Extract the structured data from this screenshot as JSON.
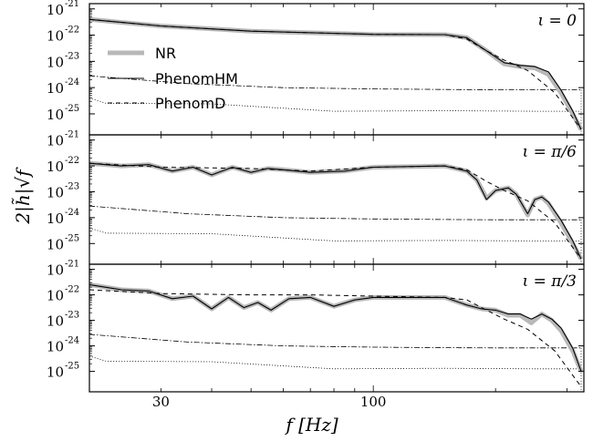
{
  "chart_data": {
    "type": "line",
    "x_axis": {
      "label": "f [Hz]",
      "scale": "log",
      "range_hz": [
        20,
        330
      ],
      "ticks": [
        {
          "value": 30,
          "label": "30"
        },
        {
          "value": 100,
          "label": "100"
        }
      ]
    },
    "y_axis": {
      "label": "2|h̃|√f",
      "scale": "log",
      "range_log10": [
        -25.8,
        -20.8
      ],
      "tick_mantissa": "10",
      "ticks": [
        {
          "value": -21,
          "exponent": "-21"
        },
        {
          "value": -22,
          "exponent": "-22"
        },
        {
          "value": -23,
          "exponent": "-23"
        },
        {
          "value": -24,
          "exponent": "-24"
        },
        {
          "value": -25,
          "exponent": "-25"
        }
      ]
    },
    "legend": {
      "placement": "upper-left of top panel",
      "entries": [
        {
          "name": "NR",
          "style": "thick-grey-solid"
        },
        {
          "name": "PhenomHM",
          "style": "thin-black-solid"
        },
        {
          "name": "PhenomD",
          "style": "black-dashed"
        }
      ]
    },
    "noise_curves": {
      "dashdot_log10": [
        [
          20,
          -23.55
        ],
        [
          35,
          -23.85
        ],
        [
          60,
          -24.0
        ],
        [
          100,
          -24.05
        ],
        [
          150,
          -24.07
        ],
        [
          200,
          -24.08
        ],
        [
          325,
          -24.08
        ]
      ],
      "dotted_log10": [
        [
          20,
          -24.4
        ],
        [
          22,
          -24.6
        ],
        [
          40,
          -24.62
        ],
        [
          80,
          -24.9
        ],
        [
          150,
          -24.88
        ],
        [
          250,
          -24.9
        ],
        [
          325,
          -24.9
        ]
      ]
    },
    "panels": [
      {
        "label": "ι = 0",
        "series": [
          {
            "name": "NR",
            "color": "#b8b8b8",
            "points": [
              [
                20,
                -21.4
              ],
              [
                30,
                -21.65
              ],
              [
                50,
                -21.85
              ],
              [
                100,
                -21.97
              ],
              [
                150,
                -21.98
              ],
              [
                170,
                -22.1
              ],
              [
                190,
                -22.6
              ],
              [
                210,
                -23.1
              ],
              [
                230,
                -23.2
              ],
              [
                250,
                -23.25
              ],
              [
                270,
                -23.5
              ],
              [
                290,
                -24.2
              ],
              [
                310,
                -25.0
              ],
              [
                325,
                -25.6
              ]
            ]
          },
          {
            "name": "PhenomHM",
            "color": "#000000",
            "points": [
              [
                20,
                -21.4
              ],
              [
                30,
                -21.65
              ],
              [
                50,
                -21.85
              ],
              [
                100,
                -21.97
              ],
              [
                150,
                -21.98
              ],
              [
                170,
                -22.1
              ],
              [
                190,
                -22.6
              ],
              [
                210,
                -23.05
              ],
              [
                230,
                -23.15
              ],
              [
                250,
                -23.2
              ],
              [
                270,
                -23.4
              ],
              [
                290,
                -24.1
              ],
              [
                310,
                -24.9
              ],
              [
                325,
                -25.6
              ]
            ]
          },
          {
            "name": "PhenomD",
            "color": "#000000",
            "points": [
              [
                20,
                -21.4
              ],
              [
                30,
                -21.65
              ],
              [
                50,
                -21.85
              ],
              [
                100,
                -21.97
              ],
              [
                150,
                -21.98
              ],
              [
                170,
                -22.15
              ],
              [
                190,
                -22.6
              ],
              [
                210,
                -22.95
              ],
              [
                240,
                -23.35
              ],
              [
                280,
                -24.2
              ],
              [
                325,
                -25.6
              ]
            ]
          }
        ]
      },
      {
        "label": "ι = π/6",
        "series": [
          {
            "name": "NR",
            "color": "#b8b8b8",
            "points": [
              [
                20,
                -21.9
              ],
              [
                24,
                -22.0
              ],
              [
                28,
                -21.95
              ],
              [
                32,
                -22.2
              ],
              [
                36,
                -22.05
              ],
              [
                40,
                -22.35
              ],
              [
                45,
                -22.05
              ],
              [
                50,
                -22.25
              ],
              [
                55,
                -22.1
              ],
              [
                60,
                -22.15
              ],
              [
                70,
                -22.25
              ],
              [
                85,
                -22.2
              ],
              [
                100,
                -22.05
              ],
              [
                150,
                -22.0
              ],
              [
                170,
                -22.2
              ],
              [
                180,
                -22.55
              ],
              [
                190,
                -23.25
              ],
              [
                200,
                -22.95
              ],
              [
                215,
                -22.85
              ],
              [
                225,
                -23.1
              ],
              [
                240,
                -23.9
              ],
              [
                250,
                -23.3
              ],
              [
                260,
                -23.2
              ],
              [
                270,
                -23.45
              ],
              [
                290,
                -24.2
              ],
              [
                310,
                -25.0
              ],
              [
                325,
                -25.6
              ]
            ]
          },
          {
            "name": "PhenomHM",
            "color": "#000000",
            "points": [
              [
                20,
                -21.9
              ],
              [
                24,
                -22.0
              ],
              [
                28,
                -21.95
              ],
              [
                32,
                -22.2
              ],
              [
                36,
                -22.05
              ],
              [
                40,
                -22.35
              ],
              [
                45,
                -22.05
              ],
              [
                50,
                -22.25
              ],
              [
                55,
                -22.1
              ],
              [
                60,
                -22.15
              ],
              [
                70,
                -22.25
              ],
              [
                85,
                -22.2
              ],
              [
                100,
                -22.05
              ],
              [
                150,
                -22.0
              ],
              [
                170,
                -22.2
              ],
              [
                180,
                -22.55
              ],
              [
                190,
                -23.3
              ],
              [
                200,
                -22.95
              ],
              [
                215,
                -22.85
              ],
              [
                225,
                -23.1
              ],
              [
                240,
                -23.85
              ],
              [
                250,
                -23.3
              ],
              [
                260,
                -23.2
              ],
              [
                270,
                -23.4
              ],
              [
                290,
                -24.1
              ],
              [
                310,
                -24.9
              ],
              [
                325,
                -25.6
              ]
            ]
          },
          {
            "name": "PhenomD",
            "color": "#000000",
            "points": [
              [
                20,
                -21.9
              ],
              [
                30,
                -22.05
              ],
              [
                50,
                -22.1
              ],
              [
                70,
                -22.2
              ],
              [
                100,
                -22.05
              ],
              [
                150,
                -22.0
              ],
              [
                170,
                -22.15
              ],
              [
                190,
                -22.6
              ],
              [
                210,
                -22.95
              ],
              [
                240,
                -23.35
              ],
              [
                280,
                -24.2
              ],
              [
                325,
                -25.6
              ]
            ]
          }
        ]
      },
      {
        "label": "ι = π/3",
        "series": [
          {
            "name": "NR",
            "color": "#b8b8b8",
            "points": [
              [
                20,
                -21.6
              ],
              [
                24,
                -21.8
              ],
              [
                28,
                -21.85
              ],
              [
                32,
                -22.15
              ],
              [
                36,
                -22.05
              ],
              [
                40,
                -22.55
              ],
              [
                44,
                -22.1
              ],
              [
                48,
                -22.5
              ],
              [
                52,
                -22.3
              ],
              [
                56,
                -22.6
              ],
              [
                62,
                -22.15
              ],
              [
                70,
                -22.1
              ],
              [
                80,
                -22.45
              ],
              [
                90,
                -22.2
              ],
              [
                100,
                -22.1
              ],
              [
                150,
                -22.1
              ],
              [
                170,
                -22.4
              ],
              [
                185,
                -22.55
              ],
              [
                200,
                -22.6
              ],
              [
                215,
                -22.8
              ],
              [
                230,
                -22.8
              ],
              [
                245,
                -23.1
              ],
              [
                260,
                -22.75
              ],
              [
                275,
                -23.0
              ],
              [
                290,
                -23.4
              ],
              [
                310,
                -24.2
              ],
              [
                325,
                -25.0
              ]
            ]
          },
          {
            "name": "PhenomHM",
            "color": "#000000",
            "points": [
              [
                20,
                -21.6
              ],
              [
                24,
                -21.8
              ],
              [
                28,
                -21.85
              ],
              [
                32,
                -22.15
              ],
              [
                36,
                -22.05
              ],
              [
                40,
                -22.55
              ],
              [
                44,
                -22.1
              ],
              [
                48,
                -22.5
              ],
              [
                52,
                -22.3
              ],
              [
                56,
                -22.6
              ],
              [
                62,
                -22.15
              ],
              [
                70,
                -22.1
              ],
              [
                80,
                -22.45
              ],
              [
                90,
                -22.2
              ],
              [
                100,
                -22.1
              ],
              [
                150,
                -22.1
              ],
              [
                170,
                -22.4
              ],
              [
                185,
                -22.55
              ],
              [
                200,
                -22.6
              ],
              [
                215,
                -22.75
              ],
              [
                230,
                -22.75
              ],
              [
                245,
                -22.95
              ],
              [
                260,
                -22.75
              ],
              [
                275,
                -22.95
              ],
              [
                290,
                -23.3
              ],
              [
                310,
                -24.1
              ],
              [
                325,
                -25.0
              ]
            ]
          },
          {
            "name": "PhenomD",
            "color": "#000000",
            "points": [
              [
                20,
                -21.8
              ],
              [
                30,
                -21.95
              ],
              [
                50,
                -22.0
              ],
              [
                70,
                -22.0
              ],
              [
                100,
                -22.05
              ],
              [
                150,
                -22.1
              ],
              [
                170,
                -22.2
              ],
              [
                190,
                -22.6
              ],
              [
                210,
                -22.95
              ],
              [
                240,
                -23.35
              ],
              [
                280,
                -24.2
              ],
              [
                325,
                -25.6
              ]
            ]
          }
        ]
      }
    ]
  }
}
